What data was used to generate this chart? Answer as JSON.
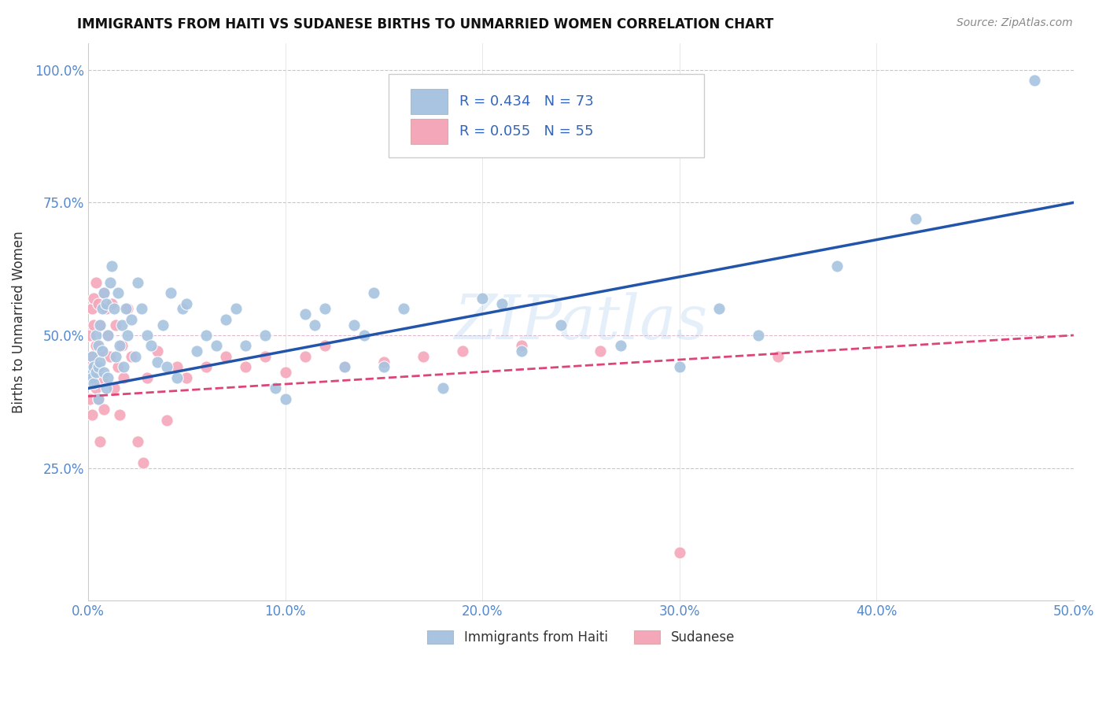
{
  "title": "IMMIGRANTS FROM HAITI VS SUDANESE BIRTHS TO UNMARRIED WOMEN CORRELATION CHART",
  "source": "Source: ZipAtlas.com",
  "ylabel_label": "Births to Unmarried Women",
  "xlim": [
    0.0,
    0.5
  ],
  "ylim": [
    0.0,
    1.05
  ],
  "xticks": [
    0.0,
    0.1,
    0.2,
    0.3,
    0.4,
    0.5
  ],
  "xticklabels": [
    "0.0%",
    "10.0%",
    "20.0%",
    "30.0%",
    "40.0%",
    "50.0%"
  ],
  "yticks": [
    0.0,
    0.25,
    0.5,
    0.75,
    1.0
  ],
  "yticklabels": [
    "",
    "25.0%",
    "50.0%",
    "75.0%",
    "100.0%"
  ],
  "haiti_color": "#a8c4e0",
  "sudan_color": "#f4a7b9",
  "haiti_line_color": "#2255aa",
  "sudan_line_color": "#dd4477",
  "legend_haiti_label": "Immigrants from Haiti",
  "legend_sudan_label": "Sudanese",
  "haiti_R": "R = 0.434",
  "haiti_N": "N = 73",
  "sudan_R": "R = 0.055",
  "sudan_N": "N = 55",
  "watermark": "ZIPatlas",
  "haiti_line_x0": 0.0,
  "haiti_line_y0": 0.4,
  "haiti_line_x1": 0.5,
  "haiti_line_y1": 0.75,
  "sudan_line_x0": 0.0,
  "sudan_line_y0": 0.385,
  "sudan_line_x1": 0.5,
  "sudan_line_y1": 0.5,
  "haiti_scatter_x": [
    0.001,
    0.002,
    0.002,
    0.003,
    0.003,
    0.004,
    0.004,
    0.005,
    0.005,
    0.005,
    0.006,
    0.006,
    0.007,
    0.007,
    0.008,
    0.008,
    0.009,
    0.009,
    0.01,
    0.01,
    0.011,
    0.012,
    0.013,
    0.014,
    0.015,
    0.016,
    0.017,
    0.018,
    0.019,
    0.02,
    0.022,
    0.024,
    0.025,
    0.027,
    0.03,
    0.032,
    0.035,
    0.038,
    0.04,
    0.042,
    0.045,
    0.048,
    0.05,
    0.055,
    0.06,
    0.065,
    0.07,
    0.075,
    0.08,
    0.09,
    0.095,
    0.1,
    0.11,
    0.115,
    0.12,
    0.13,
    0.135,
    0.14,
    0.145,
    0.15,
    0.16,
    0.18,
    0.2,
    0.21,
    0.22,
    0.24,
    0.27,
    0.3,
    0.32,
    0.34,
    0.38,
    0.42,
    0.48
  ],
  "haiti_scatter_y": [
    0.435,
    0.42,
    0.46,
    0.44,
    0.41,
    0.43,
    0.5,
    0.38,
    0.44,
    0.48,
    0.52,
    0.45,
    0.47,
    0.55,
    0.43,
    0.58,
    0.4,
    0.56,
    0.42,
    0.5,
    0.6,
    0.63,
    0.55,
    0.46,
    0.58,
    0.48,
    0.52,
    0.44,
    0.55,
    0.5,
    0.53,
    0.46,
    0.6,
    0.55,
    0.5,
    0.48,
    0.45,
    0.52,
    0.44,
    0.58,
    0.42,
    0.55,
    0.56,
    0.47,
    0.5,
    0.48,
    0.53,
    0.55,
    0.48,
    0.5,
    0.4,
    0.38,
    0.54,
    0.52,
    0.55,
    0.44,
    0.52,
    0.5,
    0.58,
    0.44,
    0.55,
    0.4,
    0.57,
    0.56,
    0.47,
    0.52,
    0.48,
    0.44,
    0.55,
    0.5,
    0.63,
    0.72,
    0.98
  ],
  "sudan_scatter_x": [
    0.001,
    0.001,
    0.001,
    0.002,
    0.002,
    0.002,
    0.003,
    0.003,
    0.003,
    0.004,
    0.004,
    0.004,
    0.005,
    0.005,
    0.005,
    0.006,
    0.006,
    0.007,
    0.007,
    0.008,
    0.008,
    0.009,
    0.01,
    0.011,
    0.012,
    0.013,
    0.014,
    0.015,
    0.016,
    0.017,
    0.018,
    0.02,
    0.022,
    0.025,
    0.028,
    0.03,
    0.035,
    0.04,
    0.045,
    0.05,
    0.06,
    0.07,
    0.08,
    0.09,
    0.1,
    0.11,
    0.12,
    0.13,
    0.15,
    0.17,
    0.19,
    0.22,
    0.26,
    0.3,
    0.35
  ],
  "sudan_scatter_y": [
    0.44,
    0.5,
    0.38,
    0.55,
    0.46,
    0.35,
    0.52,
    0.42,
    0.57,
    0.48,
    0.6,
    0.4,
    0.56,
    0.44,
    0.38,
    0.52,
    0.3,
    0.47,
    0.42,
    0.58,
    0.36,
    0.55,
    0.5,
    0.46,
    0.56,
    0.4,
    0.52,
    0.44,
    0.35,
    0.48,
    0.42,
    0.55,
    0.46,
    0.3,
    0.26,
    0.42,
    0.47,
    0.34,
    0.44,
    0.42,
    0.44,
    0.46,
    0.44,
    0.46,
    0.43,
    0.46,
    0.48,
    0.44,
    0.45,
    0.46,
    0.47,
    0.48,
    0.47,
    0.09,
    0.46
  ]
}
